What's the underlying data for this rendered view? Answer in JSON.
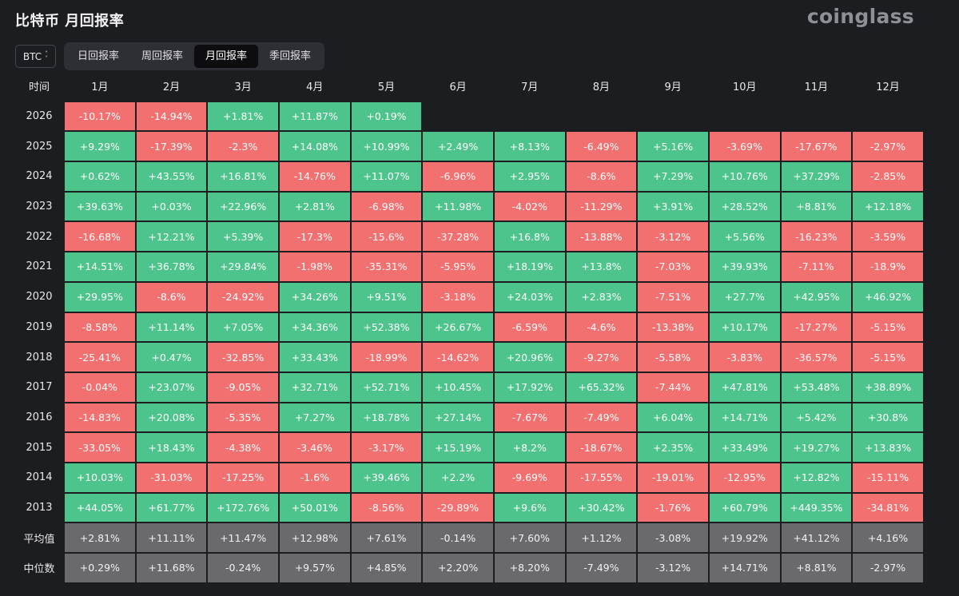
{
  "header": {
    "title": "比特币 月回报率",
    "logo_text": "coinglass"
  },
  "coin_select": {
    "value": "BTC",
    "icon": "chevron-updown-icon"
  },
  "tabs": [
    {
      "label": "日回报率",
      "active": false
    },
    {
      "label": "周回报率",
      "active": false
    },
    {
      "label": "月回报率",
      "active": true
    },
    {
      "label": "季回报率",
      "active": false
    }
  ],
  "table": {
    "corner_label": "时间",
    "months": [
      "1月",
      "2月",
      "3月",
      "4月",
      "5月",
      "6月",
      "7月",
      "8月",
      "9月",
      "10月",
      "11月",
      "12月"
    ],
    "rows": [
      {
        "year": "2026",
        "values": [
          "-10.17%",
          "-14.94%",
          "+1.81%",
          "+11.87%",
          "+0.19%",
          "",
          "",
          "",
          "",
          "",
          "",
          ""
        ]
      },
      {
        "year": "2025",
        "values": [
          "+9.29%",
          "-17.39%",
          "-2.3%",
          "+14.08%",
          "+10.99%",
          "+2.49%",
          "+8.13%",
          "-6.49%",
          "+5.16%",
          "-3.69%",
          "-17.67%",
          "-2.97%"
        ]
      },
      {
        "year": "2024",
        "values": [
          "+0.62%",
          "+43.55%",
          "+16.81%",
          "-14.76%",
          "+11.07%",
          "-6.96%",
          "+2.95%",
          "-8.6%",
          "+7.29%",
          "+10.76%",
          "+37.29%",
          "-2.85%"
        ]
      },
      {
        "year": "2023",
        "values": [
          "+39.63%",
          "+0.03%",
          "+22.96%",
          "+2.81%",
          "-6.98%",
          "+11.98%",
          "-4.02%",
          "-11.29%",
          "+3.91%",
          "+28.52%",
          "+8.81%",
          "+12.18%"
        ]
      },
      {
        "year": "2022",
        "values": [
          "-16.68%",
          "+12.21%",
          "+5.39%",
          "-17.3%",
          "-15.6%",
          "-37.28%",
          "+16.8%",
          "-13.88%",
          "-3.12%",
          "+5.56%",
          "-16.23%",
          "-3.59%"
        ]
      },
      {
        "year": "2021",
        "values": [
          "+14.51%",
          "+36.78%",
          "+29.84%",
          "-1.98%",
          "-35.31%",
          "-5.95%",
          "+18.19%",
          "+13.8%",
          "-7.03%",
          "+39.93%",
          "-7.11%",
          "-18.9%"
        ]
      },
      {
        "year": "2020",
        "values": [
          "+29.95%",
          "-8.6%",
          "-24.92%",
          "+34.26%",
          "+9.51%",
          "-3.18%",
          "+24.03%",
          "+2.83%",
          "-7.51%",
          "+27.7%",
          "+42.95%",
          "+46.92%"
        ]
      },
      {
        "year": "2019",
        "values": [
          "-8.58%",
          "+11.14%",
          "+7.05%",
          "+34.36%",
          "+52.38%",
          "+26.67%",
          "-6.59%",
          "-4.6%",
          "-13.38%",
          "+10.17%",
          "-17.27%",
          "-5.15%"
        ]
      },
      {
        "year": "2018",
        "values": [
          "-25.41%",
          "+0.47%",
          "-32.85%",
          "+33.43%",
          "-18.99%",
          "-14.62%",
          "+20.96%",
          "-9.27%",
          "-5.58%",
          "-3.83%",
          "-36.57%",
          "-5.15%"
        ]
      },
      {
        "year": "2017",
        "values": [
          "-0.04%",
          "+23.07%",
          "-9.05%",
          "+32.71%",
          "+52.71%",
          "+10.45%",
          "+17.92%",
          "+65.32%",
          "-7.44%",
          "+47.81%",
          "+53.48%",
          "+38.89%"
        ]
      },
      {
        "year": "2016",
        "values": [
          "-14.83%",
          "+20.08%",
          "-5.35%",
          "+7.27%",
          "+18.78%",
          "+27.14%",
          "-7.67%",
          "-7.49%",
          "+6.04%",
          "+14.71%",
          "+5.42%",
          "+30.8%"
        ]
      },
      {
        "year": "2015",
        "values": [
          "-33.05%",
          "+18.43%",
          "-4.38%",
          "-3.46%",
          "-3.17%",
          "+15.19%",
          "+8.2%",
          "-18.67%",
          "+2.35%",
          "+33.49%",
          "+19.27%",
          "+13.83%"
        ]
      },
      {
        "year": "2014",
        "values": [
          "+10.03%",
          "-31.03%",
          "-17.25%",
          "-1.6%",
          "+39.46%",
          "+2.2%",
          "-9.69%",
          "-17.55%",
          "-19.01%",
          "-12.95%",
          "+12.82%",
          "-15.11%"
        ]
      },
      {
        "year": "2013",
        "values": [
          "+44.05%",
          "+61.77%",
          "+172.76%",
          "+50.01%",
          "-8.56%",
          "-29.89%",
          "+9.6%",
          "+30.42%",
          "-1.76%",
          "+60.79%",
          "+449.35%",
          "-34.81%"
        ]
      }
    ],
    "stats": [
      {
        "label": "平均值",
        "values": [
          "+2.81%",
          "+11.11%",
          "+11.47%",
          "+12.98%",
          "+7.61%",
          "-0.14%",
          "+7.60%",
          "+1.12%",
          "-3.08%",
          "+19.92%",
          "+41.12%",
          "+4.16%"
        ]
      },
      {
        "label": "中位数",
        "values": [
          "+0.29%",
          "+11.68%",
          "-0.24%",
          "+9.57%",
          "+4.85%",
          "+2.20%",
          "+8.20%",
          "-7.49%",
          "-3.12%",
          "+14.71%",
          "+8.81%",
          "-2.97%"
        ]
      }
    ]
  },
  "colors": {
    "positive": "#4dc48b",
    "negative": "#f37070",
    "stat": "#69696e",
    "background": "#1c1d21"
  }
}
